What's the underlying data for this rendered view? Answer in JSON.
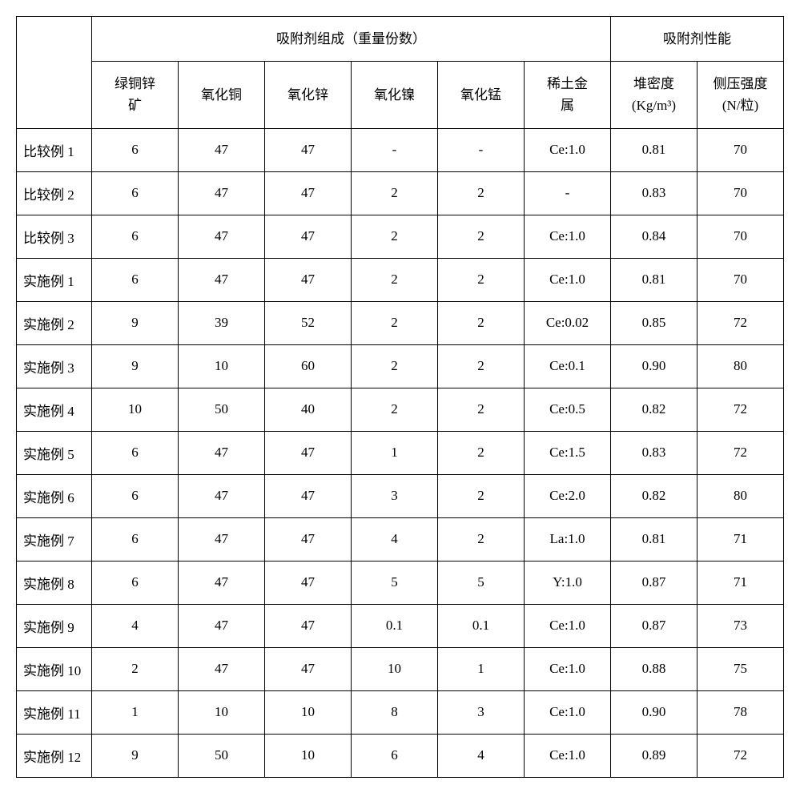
{
  "table": {
    "header_group_1": "吸附剂组成（重量份数）",
    "header_group_2": "吸附剂性能",
    "columns": [
      "绿铜锌矿",
      "氧化铜",
      "氧化锌",
      "氧化镍",
      "氧化锰",
      "稀土金属",
      "堆密度(Kg/m³)",
      "侧压强度(N/粒)"
    ],
    "col_line1": [
      "绿铜锌",
      "氧化铜",
      "氧化锌",
      "氧化镍",
      "氧化锰",
      "稀土金",
      "堆密度",
      "侧压强度"
    ],
    "col_line2": [
      "矿",
      "",
      "",
      "",
      "",
      "属",
      "(Kg/m³)",
      "(N/粒)"
    ],
    "rows": [
      {
        "label": "比较例 1",
        "cells": [
          "6",
          "47",
          "47",
          "-",
          "-",
          "Ce:1.0",
          "0.81",
          "70"
        ]
      },
      {
        "label": "比较例 2",
        "cells": [
          "6",
          "47",
          "47",
          "2",
          "2",
          "-",
          "0.83",
          "70"
        ]
      },
      {
        "label": "比较例 3",
        "cells": [
          "6",
          "47",
          "47",
          "2",
          "2",
          "Ce:1.0",
          "0.84",
          "70"
        ]
      },
      {
        "label": "实施例 1",
        "cells": [
          "6",
          "47",
          "47",
          "2",
          "2",
          "Ce:1.0",
          "0.81",
          "70"
        ]
      },
      {
        "label": "实施例 2",
        "cells": [
          "9",
          "39",
          "52",
          "2",
          "2",
          "Ce:0.02",
          "0.85",
          "72"
        ]
      },
      {
        "label": "实施例 3",
        "cells": [
          "9",
          "10",
          "60",
          "2",
          "2",
          "Ce:0.1",
          "0.90",
          "80"
        ]
      },
      {
        "label": "实施例 4",
        "cells": [
          "10",
          "50",
          "40",
          "2",
          "2",
          "Ce:0.5",
          "0.82",
          "72"
        ]
      },
      {
        "label": "实施例 5",
        "cells": [
          "6",
          "47",
          "47",
          "1",
          "2",
          "Ce:1.5",
          "0.83",
          "72"
        ]
      },
      {
        "label": "实施例 6",
        "cells": [
          "6",
          "47",
          "47",
          "3",
          "2",
          "Ce:2.0",
          "0.82",
          "80"
        ]
      },
      {
        "label": "实施例 7",
        "cells": [
          "6",
          "47",
          "47",
          "4",
          "2",
          "La:1.0",
          "0.81",
          "71"
        ]
      },
      {
        "label": "实施例 8",
        "cells": [
          "6",
          "47",
          "47",
          "5",
          "5",
          "Y:1.0",
          "0.87",
          "71"
        ]
      },
      {
        "label": "实施例 9",
        "cells": [
          "4",
          "47",
          "47",
          "0.1",
          "0.1",
          "Ce:1.0",
          "0.87",
          "73"
        ]
      },
      {
        "label": "实施例 10",
        "cells": [
          "2",
          "47",
          "47",
          "10",
          "1",
          "Ce:1.0",
          "0.88",
          "75"
        ]
      },
      {
        "label": "实施例 11",
        "cells": [
          "1",
          "10",
          "10",
          "8",
          "3",
          "Ce:1.0",
          "0.90",
          "78"
        ]
      },
      {
        "label": "实施例 12",
        "cells": [
          "9",
          "50",
          "10",
          "6",
          "4",
          "Ce:1.0",
          "0.89",
          "72"
        ]
      }
    ]
  },
  "colors": {
    "background": "#ffffff",
    "border": "#000000",
    "text": "#000000"
  },
  "typography": {
    "font_family": "SimSun",
    "font_size": 17
  }
}
